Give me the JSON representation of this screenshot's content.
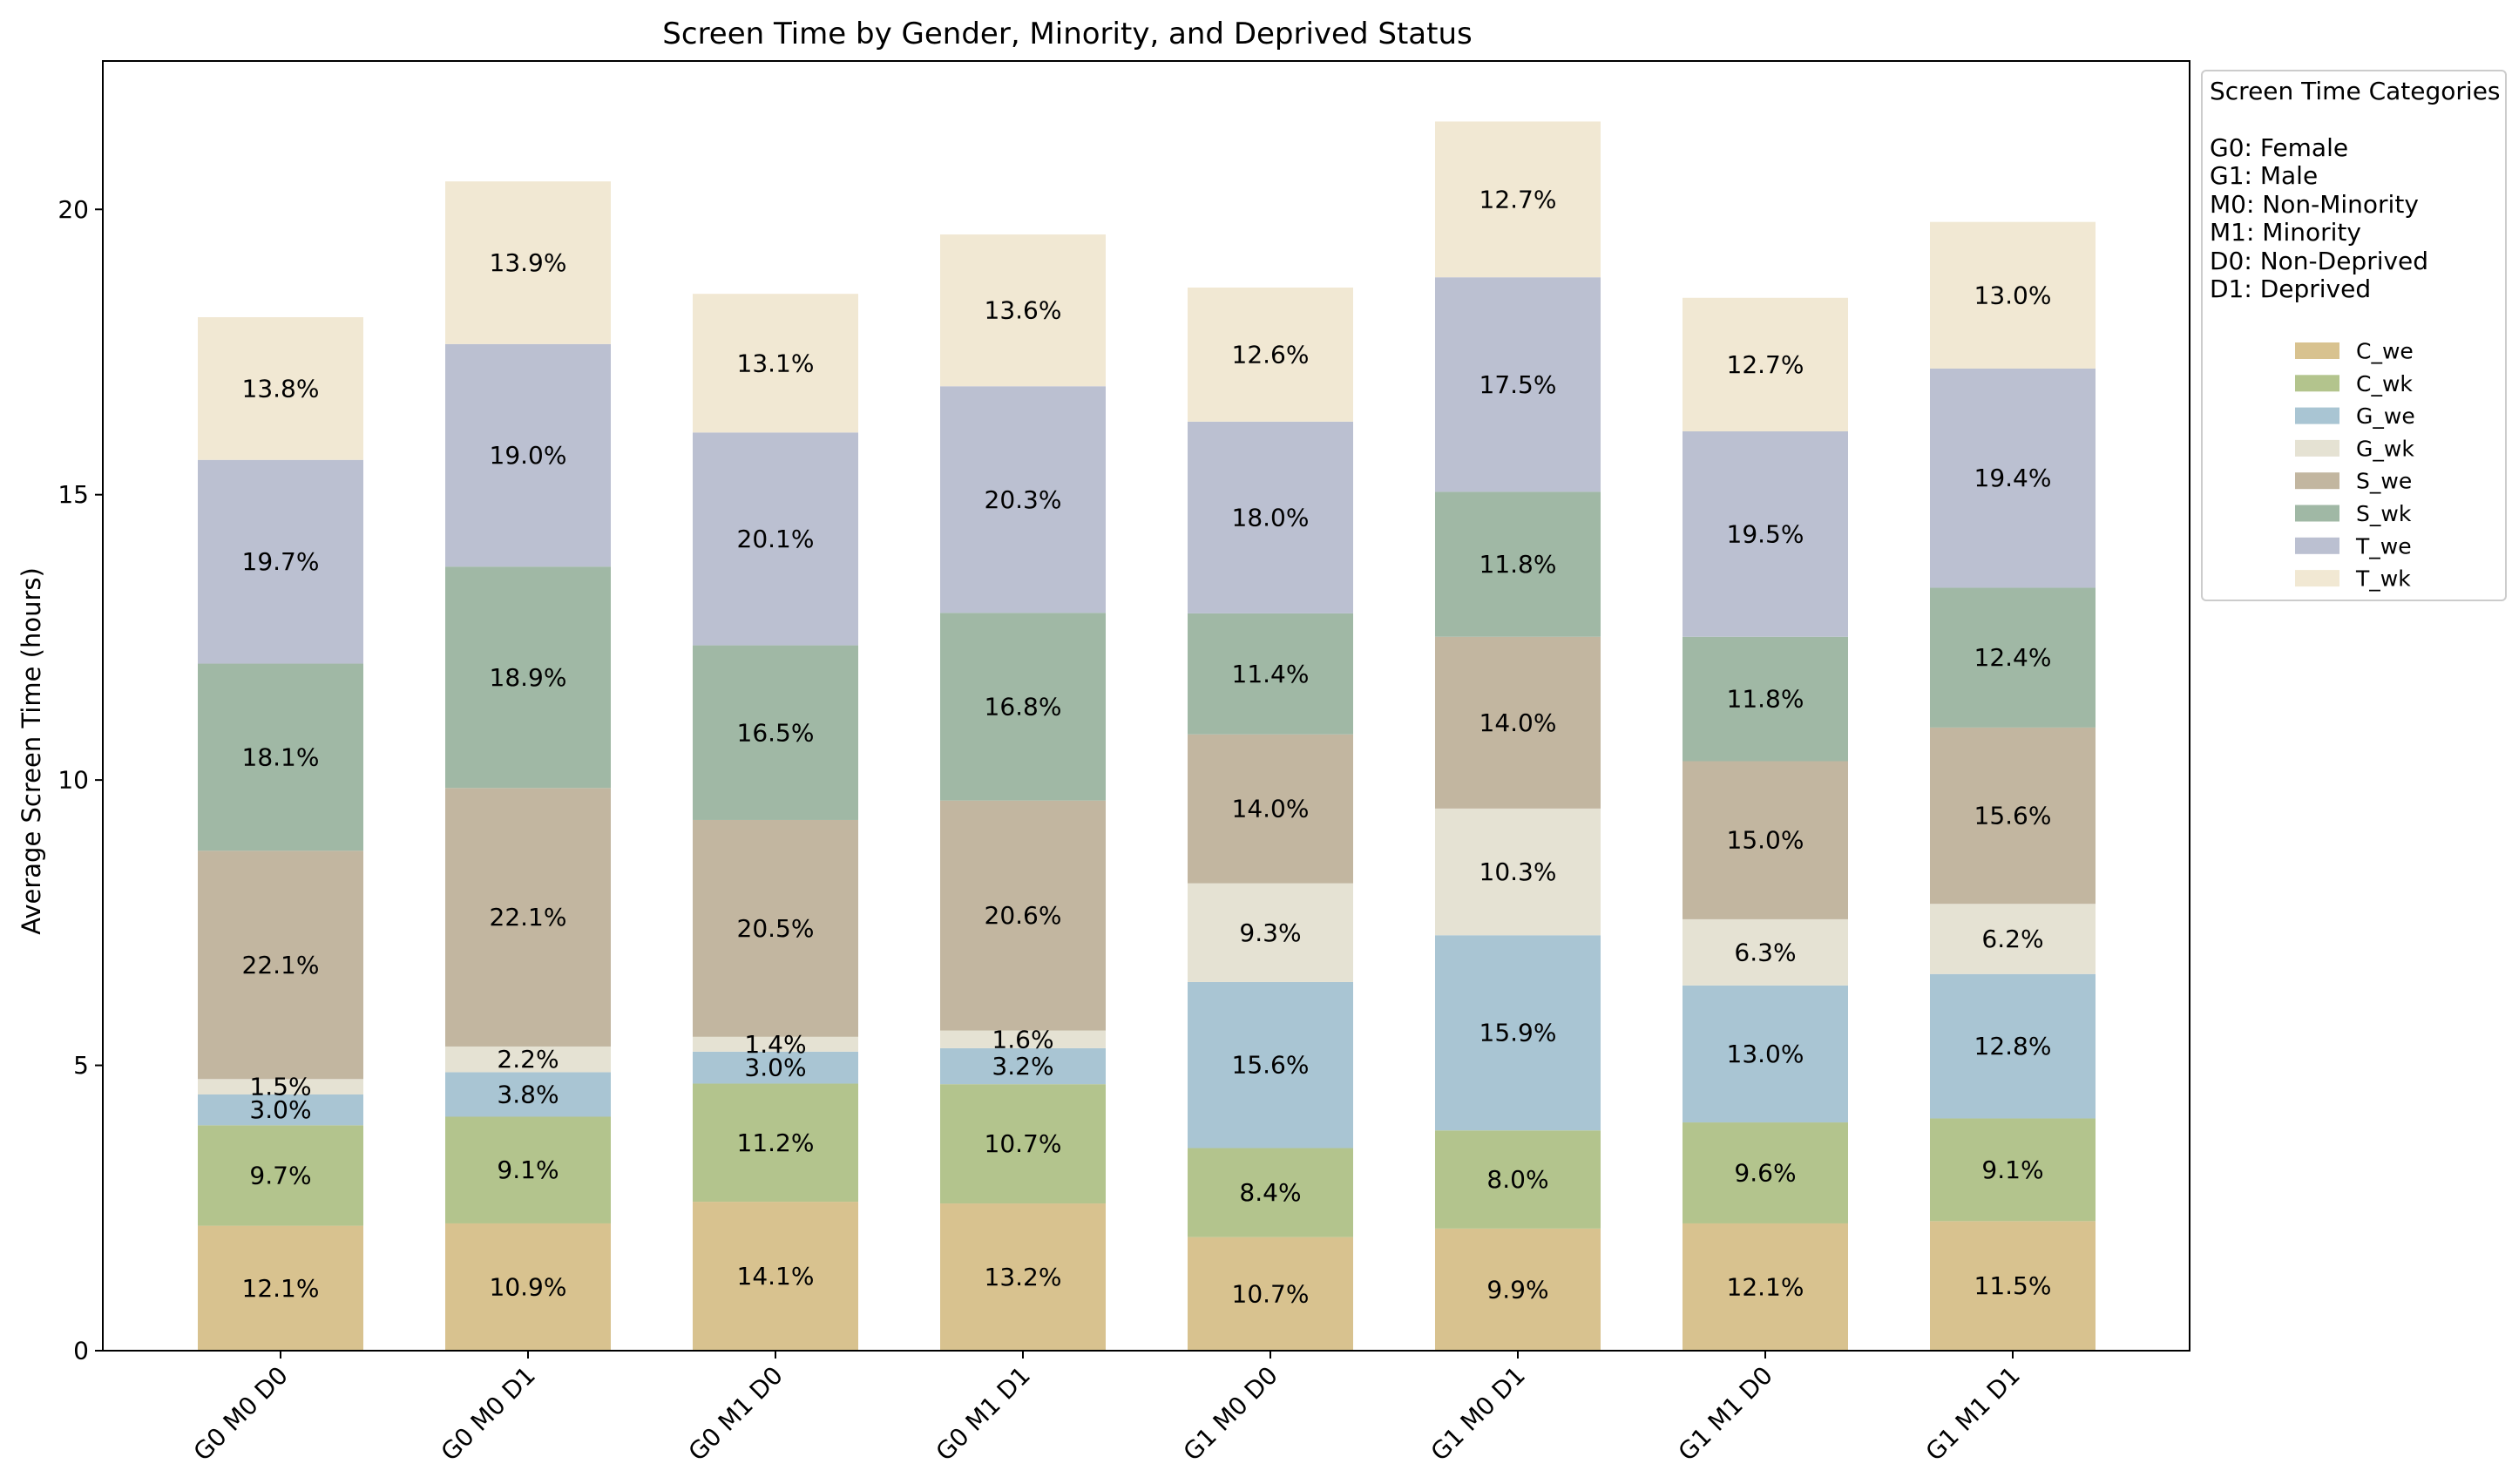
{
  "chart_data": {
    "type": "bar",
    "stacked": true,
    "title": "Screen Time by Gender, Minority, and Deprived Status",
    "xlabel": "",
    "ylabel": "Average Screen Time (hours)",
    "ylim": [
      0,
      22.6
    ],
    "yticks": [
      0,
      5,
      10,
      15,
      20
    ],
    "grid": false,
    "legend_placement": "outside-right",
    "categories": [
      "G0 M0 D0",
      "G0 M0 D1",
      "G0 M1 D0",
      "G0 M1 D1",
      "G1 M0 D0",
      "G1 M0 D1",
      "G1 M1 D0",
      "G1 M1 D1"
    ],
    "series": [
      {
        "name": "C_we",
        "color": "#d8c28f",
        "values": [
          2.19,
          2.23,
          2.61,
          2.58,
          1.99,
          2.14,
          2.23,
          2.27
        ],
        "labels": [
          "12.1%",
          "10.9%",
          "14.1%",
          "13.2%",
          "10.7%",
          "9.9%",
          "12.1%",
          "11.5%"
        ]
      },
      {
        "name": "C_wk",
        "color": "#b3c48d",
        "values": [
          1.76,
          1.87,
          2.07,
          2.09,
          1.56,
          1.72,
          1.77,
          1.8
        ],
        "labels": [
          "9.7%",
          "9.1%",
          "11.2%",
          "10.7%",
          "8.4%",
          "8.0%",
          "9.6%",
          "9.1%"
        ]
      },
      {
        "name": "G_we",
        "color": "#a9c5d3",
        "values": [
          0.54,
          0.78,
          0.56,
          0.63,
          2.91,
          3.42,
          2.4,
          2.53
        ],
        "labels": [
          "3.0%",
          "3.8%",
          "3.0%",
          "3.2%",
          "15.6%",
          "15.9%",
          "13.0%",
          "12.8%"
        ]
      },
      {
        "name": "G_wk",
        "color": "#e5e2d3",
        "values": [
          0.27,
          0.45,
          0.26,
          0.31,
          1.73,
          2.22,
          1.16,
          1.23
        ],
        "labels": [
          "1.5%",
          "2.2%",
          "1.4%",
          "1.6%",
          "9.3%",
          "10.3%",
          "6.3%",
          "6.2%"
        ]
      },
      {
        "name": "S_we",
        "color": "#c2b6a0",
        "values": [
          4.0,
          4.53,
          3.8,
          4.03,
          2.61,
          3.01,
          2.77,
          3.09
        ],
        "labels": [
          "22.1%",
          "22.1%",
          "20.5%",
          "20.6%",
          "14.0%",
          "14.0%",
          "15.0%",
          "15.6%"
        ]
      },
      {
        "name": "S_wk",
        "color": "#a0b8a5",
        "values": [
          3.28,
          3.88,
          3.06,
          3.29,
          2.12,
          2.54,
          2.18,
          2.45
        ],
        "labels": [
          "18.1%",
          "18.9%",
          "16.5%",
          "16.8%",
          "11.4%",
          "11.8%",
          "11.8%",
          "12.4%"
        ]
      },
      {
        "name": "T_we",
        "color": "#bbc0d1",
        "values": [
          3.57,
          3.9,
          3.73,
          3.97,
          3.36,
          3.76,
          3.6,
          3.84
        ],
        "labels": [
          "19.7%",
          "19.0%",
          "20.1%",
          "20.3%",
          "18.0%",
          "17.5%",
          "19.5%",
          "19.4%"
        ]
      },
      {
        "name": "T_wk",
        "color": "#f1e8d3",
        "values": [
          2.5,
          2.85,
          2.43,
          2.66,
          2.35,
          2.73,
          2.34,
          2.57
        ],
        "labels": [
          "13.8%",
          "13.9%",
          "13.1%",
          "13.6%",
          "12.6%",
          "12.7%",
          "12.7%",
          "13.0%"
        ]
      }
    ]
  },
  "legend": {
    "title": "Screen Time Categories",
    "notes": [
      "G0: Female",
      "G1: Male",
      "M0: Non-Minority",
      "M1: Minority",
      "D0: Non-Deprived",
      "D1: Deprived"
    ]
  }
}
